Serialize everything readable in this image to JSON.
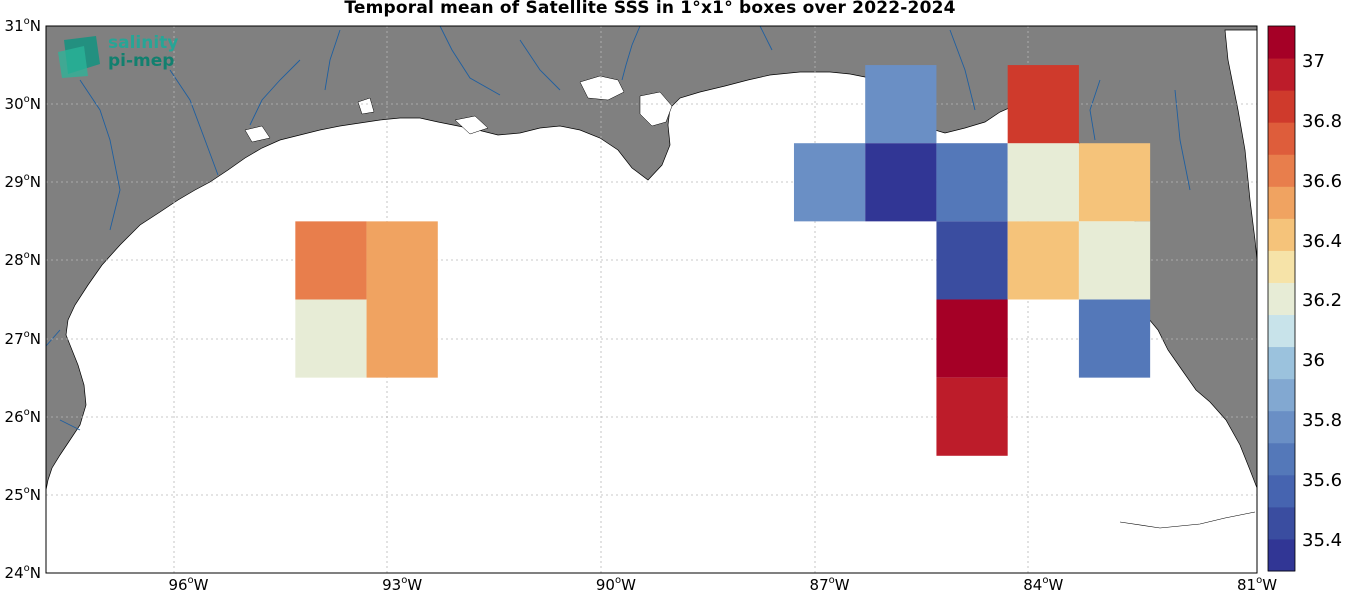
{
  "title": "Temporal mean of Satellite SSS in 1°x1° boxes over 2022-2024",
  "logo": {
    "line1": "salinity",
    "line2": "pi-mep"
  },
  "lat_ticks": [
    "31",
    "30",
    "29",
    "28",
    "27",
    "26",
    "25",
    "24"
  ],
  "lon_ticks": [
    "96",
    "93",
    "90",
    "87",
    "84",
    "81"
  ],
  "lat_suffix": "N",
  "lon_suffix": "W",
  "deg_symbol": "o",
  "colorbar": {
    "ticks": [
      "37",
      "36.8",
      "36.6",
      "36.4",
      "36.2",
      "36",
      "35.8",
      "35.6",
      "35.4"
    ],
    "colors": [
      "#313695",
      "#3a4da0",
      "#4664b0",
      "#5478b9",
      "#6a8fc5",
      "#82a8d1",
      "#9bc2dd",
      "#c8e3ea",
      "#e7ecd6",
      "#f6e3a8",
      "#f5c37a",
      "#f0a361",
      "#e87e4c",
      "#de5d3b",
      "#cf3a2c",
      "#bd1c2a",
      "#a50026"
    ],
    "vmin": 35.3,
    "vmax": 37.12
  },
  "colors": {
    "land": "#808080",
    "ocean": "#ffffff",
    "rivers": "#1f5fa0"
  },
  "chart_data": {
    "type": "heatmap",
    "title": "Temporal mean of Satellite SSS in 1°x1° boxes over 2022-2024",
    "lon_range": [
      -98,
      -81
    ],
    "lat_range": [
      24,
      31
    ],
    "boxes": [
      {
        "lon": [
          -94.5,
          -93.5
        ],
        "lat": [
          27.5,
          28.5
        ],
        "sss": 36.65
      },
      {
        "lon": [
          -93.5,
          -92.5
        ],
        "lat": [
          27.5,
          28.5
        ],
        "sss": 36.55
      },
      {
        "lon": [
          -94.5,
          -93.5
        ],
        "lat": [
          26.5,
          27.5
        ],
        "sss": 36.25
      },
      {
        "lon": [
          -93.5,
          -92.5
        ],
        "lat": [
          26.5,
          27.5
        ],
        "sss": 36.55
      },
      {
        "lon": [
          -86.5,
          -85.5
        ],
        "lat": [
          29.5,
          30.5
        ],
        "sss": 35.78
      },
      {
        "lon": [
          -87.5,
          -86.5
        ],
        "lat": [
          28.5,
          29.5
        ],
        "sss": 35.82
      },
      {
        "lon": [
          -86.5,
          -85.5
        ],
        "lat": [
          28.5,
          29.5
        ],
        "sss": 35.35
      },
      {
        "lon": [
          -85.5,
          -84.5
        ],
        "lat": [
          28.5,
          29.5
        ],
        "sss": 35.68
      },
      {
        "lon": [
          -84.5,
          -83.5
        ],
        "lat": [
          28.5,
          29.5
        ],
        "sss": 36.25
      },
      {
        "lon": [
          -83.5,
          -82.5
        ],
        "lat": [
          28.5,
          29.5
        ],
        "sss": 36.38
      },
      {
        "lon": [
          -84.5,
          -83.5
        ],
        "lat": [
          29.5,
          30.5
        ],
        "sss": 36.85
      },
      {
        "lon": [
          -85.5,
          -84.5
        ],
        "lat": [
          27.5,
          28.5
        ],
        "sss": 35.48
      },
      {
        "lon": [
          -84.5,
          -83.5
        ],
        "lat": [
          27.5,
          28.5
        ],
        "sss": 36.38
      },
      {
        "lon": [
          -83.5,
          -82.5
        ],
        "lat": [
          27.5,
          28.5
        ],
        "sss": 36.18
      },
      {
        "lon": [
          -85.5,
          -84.5
        ],
        "lat": [
          26.5,
          27.5
        ],
        "sss": 37.1
      },
      {
        "lon": [
          -83.5,
          -82.5
        ],
        "lat": [
          26.5,
          27.5
        ],
        "sss": 35.65
      },
      {
        "lon": [
          -85.5,
          -84.5
        ],
        "lat": [
          25.5,
          26.5
        ],
        "sss": 37.0
      }
    ]
  }
}
